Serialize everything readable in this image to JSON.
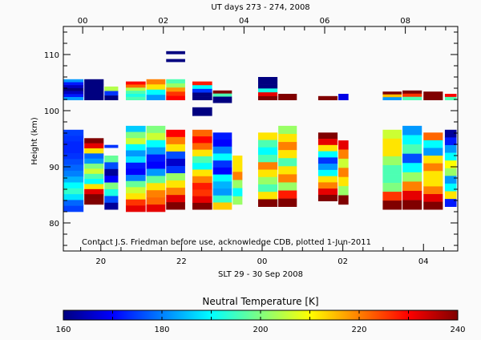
{
  "chart_data": {
    "type": "heatmap",
    "title_top_axis": "UT days 273 - 274, 2008",
    "xlabel": "SLT 29 - 30 Sep 2008",
    "ylabel": "Height (km)",
    "annotation": "Contact J.S. Friedman before use, acknowledge CDB, plotted 1-Jun-2011",
    "colorbar_title": "Neutral Temperature [K]",
    "colorbar_ticks": [
      "160",
      "180",
      "200",
      "220",
      "240"
    ],
    "colorbar_range": [
      160,
      240
    ],
    "colormap": "jet",
    "ut_range_hours": [
      -0.48,
      9.3
    ],
    "ylim": [
      75,
      115
    ],
    "y_ticks": [
      "80",
      "90",
      "100",
      "110"
    ],
    "ut_ticks": [
      "00",
      "02",
      "04",
      "06",
      "08"
    ],
    "slt_ticks": [
      "20",
      "22",
      "00",
      "02",
      "04"
    ],
    "slt_minus_ut_hours": 19.55,
    "columns": [
      {
        "ut": [
          -0.49,
          0.04
        ],
        "layers": [
          {
            "top": 105.6,
            "bottom": 101.9,
            "temps": [
              182,
              172,
              165,
              160,
              165,
              172,
              182
            ]
          },
          {
            "top": 96.6,
            "bottom": 82.0,
            "temps": [
              175,
              174,
              173,
              173,
              174,
              176,
              178,
              180,
              184,
              190,
              194,
              188,
              178,
              175
            ]
          }
        ]
      },
      {
        "ut": [
          0.04,
          0.54
        ],
        "layers": [
          {
            "top": 105.6,
            "bottom": 101.9,
            "temps": [
              160,
              160,
              160,
              160
            ]
          },
          {
            "top": 95.1,
            "bottom": 83.3,
            "temps": [
              240,
              232,
              212,
              178,
              182,
              200,
              206,
              196,
              190,
              212,
              232,
              240,
              240
            ]
          }
        ]
      },
      {
        "ut": [
          0.54,
          0.9
        ],
        "layers": [
          {
            "top": 104.3,
            "bottom": 101.9,
            "temps": [
              204,
              174,
              160
            ]
          },
          {
            "top": 93.9,
            "bottom": 93.4,
            "temps": [
              174
            ]
          },
          {
            "top": 92.0,
            "bottom": 82.4,
            "temps": [
              198,
              176,
              162,
              170,
              200,
              192,
              176,
              162
            ]
          }
        ]
      },
      {
        "ut": [
          1.07,
          1.58
        ],
        "layers": [
          {
            "top": 105.2,
            "bottom": 101.9,
            "temps": [
              230,
              222,
              204,
              196,
              192,
              196
            ]
          },
          {
            "top": 97.3,
            "bottom": 82.0,
            "temps": [
              186,
              200,
              206,
              190,
              182,
              188,
              172,
              170,
              180,
              198,
              206,
              212,
              226,
              232
            ]
          }
        ]
      },
      {
        "ut": [
          1.58,
          2.07
        ],
        "layers": [
          {
            "top": 105.6,
            "bottom": 101.9,
            "temps": [
              220,
              212,
              190,
              182
            ]
          },
          {
            "top": 97.3,
            "bottom": 82.0,
            "temps": [
              200,
              206,
              190,
              182,
              172,
              170,
              182,
              198,
              212,
              220,
              222,
              232
            ]
          }
        ]
      },
      {
        "ut": [
          2.07,
          2.56
        ],
        "layers": [
          {
            "top": 105.6,
            "bottom": 101.9,
            "temps": [
              196,
              202,
              218,
              226,
              230
            ]
          },
          {
            "top": 110.6,
            "bottom": 110.1,
            "temps": [
              160
            ]
          },
          {
            "top": 109.2,
            "bottom": 108.7,
            "temps": [
              160
            ]
          },
          {
            "top": 96.6,
            "bottom": 82.4,
            "temps": [
              230,
              220,
              212,
              176,
              166,
              174,
              202,
              212,
              220,
              232,
              240
            ]
          }
        ]
      },
      {
        "ut": [
          2.72,
          3.23
        ],
        "layers": [
          {
            "top": 105.2,
            "bottom": 101.9,
            "temps": [
              228,
              190,
              174,
              160,
              160
            ]
          },
          {
            "top": 100.6,
            "bottom": 99.1,
            "temps": [
              160
            ]
          },
          {
            "top": 96.6,
            "bottom": 82.4,
            "temps": [
              222,
              230,
              222,
              212,
              196,
              190,
              212,
              220,
              228,
              226,
              232,
              240
            ]
          }
        ]
      },
      {
        "ut": [
          3.23,
          3.72
        ],
        "layers": [
          {
            "top": 103.6,
            "bottom": 101.4,
            "temps": [
              240,
              196,
              160,
              160
            ]
          },
          {
            "top": 96.1,
            "bottom": 82.4,
            "temps": [
              172,
              170,
              180,
              190,
              174,
              170,
              190,
              184,
              182,
              194,
              214
            ]
          }
        ]
      },
      {
        "ut": [
          3.72,
          3.98
        ],
        "layers": [
          {
            "top": 92.0,
            "bottom": 83.3,
            "temps": [
              212,
              212,
              220,
              202,
              190,
              202
            ]
          }
        ]
      },
      {
        "ut": [
          4.35,
          4.85
        ],
        "layers": [
          {
            "top": 106.0,
            "bottom": 101.9,
            "temps": [
              160,
              160,
              160,
              192,
              232,
              240
            ]
          },
          {
            "top": 96.1,
            "bottom": 82.9,
            "temps": [
              212,
              196,
              190,
              196,
              220,
              212,
              202,
              196,
              212,
              240
            ]
          }
        ]
      },
      {
        "ut": [
          4.85,
          5.33
        ],
        "layers": [
          {
            "top": 103.0,
            "bottom": 101.9,
            "temps": [
              240
            ]
          },
          {
            "top": 97.3,
            "bottom": 82.9,
            "temps": [
              202,
              212,
              220,
              212,
              196,
              212,
              220,
              202,
              228,
              240
            ]
          }
        ]
      },
      {
        "ut": [
          5.84,
          6.34
        ],
        "layers": [
          {
            "top": 102.6,
            "bottom": 101.9,
            "temps": [
              240
            ]
          },
          {
            "top": 96.1,
            "bottom": 83.9,
            "temps": [
              240,
              232,
              212,
              190,
              174,
              182,
              190,
              212,
              220,
              232,
              240
            ]
          }
        ]
      },
      {
        "ut": [
          6.34,
          6.61
        ],
        "layers": [
          {
            "top": 103.0,
            "bottom": 101.9,
            "temps": [
              168
            ]
          },
          {
            "top": 94.7,
            "bottom": 83.3,
            "temps": [
              232,
              220,
              206,
              220,
              212,
              202,
              240
            ]
          }
        ]
      },
      {
        "ut": [
          7.44,
          7.93
        ],
        "layers": [
          {
            "top": 103.4,
            "bottom": 101.9,
            "temps": [
              240,
              215,
              182
            ]
          },
          {
            "top": 96.6,
            "bottom": 82.4,
            "temps": [
              206,
              212,
              212,
              202,
              196,
              196,
              200,
              226,
              240
            ]
          }
        ]
      },
      {
        "ut": [
          7.93,
          8.43
        ],
        "layers": [
          {
            "top": 103.6,
            "bottom": 101.9,
            "temps": [
              240,
              226,
              196
            ]
          },
          {
            "top": 97.3,
            "bottom": 82.4,
            "temps": [
              182,
              190,
              196,
              176,
              190,
              202,
              220,
              232,
              240
            ]
          }
        ]
      },
      {
        "ut": [
          8.45,
          8.95
        ],
        "layers": [
          {
            "top": 103.4,
            "bottom": 101.9,
            "temps": [
              240,
              240
            ]
          },
          {
            "top": 96.1,
            "bottom": 82.4,
            "temps": [
              222,
              190,
              182,
              212,
              220,
              212,
              212,
              220,
              232,
              240
            ]
          }
        ]
      },
      {
        "ut": [
          8.98,
          9.29
        ],
        "layers": [
          {
            "top": 103.0,
            "bottom": 101.9,
            "temps": [
              230,
              196
            ]
          },
          {
            "top": 96.6,
            "bottom": 82.9,
            "temps": [
              162,
              172,
              182,
              190,
              210,
              202,
              182,
              190,
              212,
              172
            ]
          }
        ]
      }
    ]
  }
}
